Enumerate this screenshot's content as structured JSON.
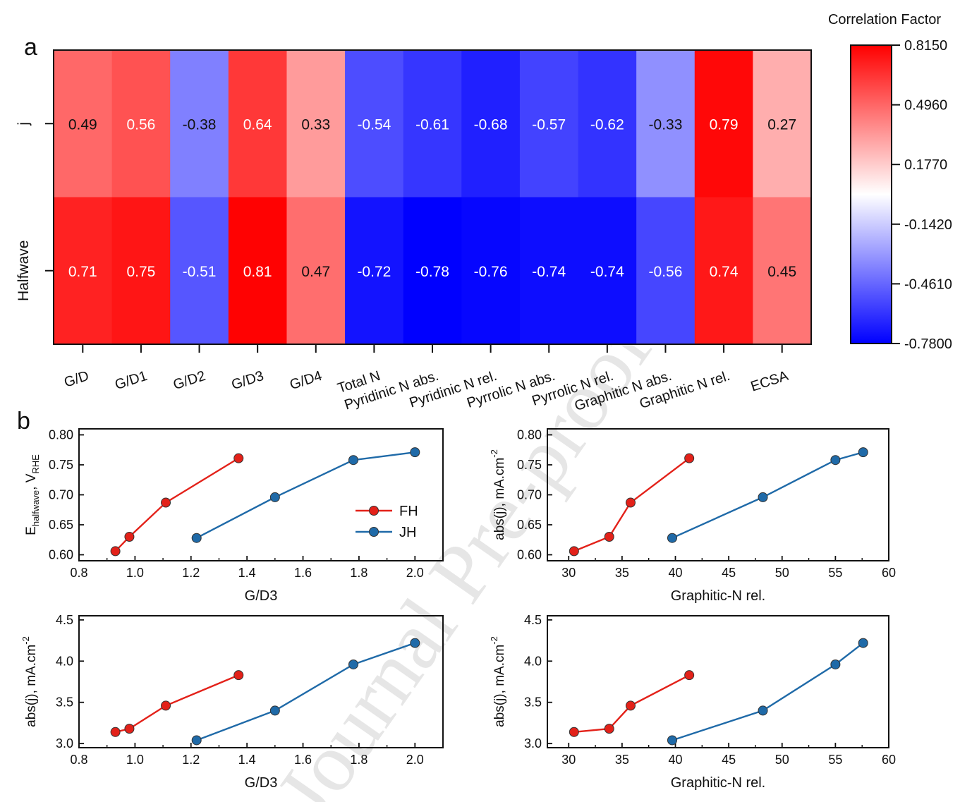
{
  "figure": {
    "panel_a_label": "a",
    "panel_b_label": "b",
    "watermark": "Journal Pre-proof"
  },
  "chart_data": [
    {
      "id": "a",
      "type": "heatmap",
      "rows": [
        "j",
        "Halfwave"
      ],
      "columns": [
        "G/D",
        "G/D1",
        "G/D2",
        "G/D3",
        "G/D4",
        "Total N",
        "Pyridinic N abs.",
        "Pyridinic N rel.",
        "Pyrrolic N abs.",
        "Pyrrolic N rel.",
        "Graphitic N abs.",
        "Graphitic N rel.",
        "ECSA"
      ],
      "values": [
        [
          "0.49",
          "0.56",
          "-0.38",
          "0.64",
          "0.33",
          "-0.54",
          "-0.61",
          "-0.68",
          "-0.57",
          "-0.62",
          "-0.33",
          "0.79",
          "0.27"
        ],
        [
          "0.71",
          "0.75",
          "-0.51",
          "0.81",
          "0.47",
          "-0.72",
          "-0.78",
          "-0.76",
          "-0.74",
          "-0.74",
          "-0.56",
          "0.74",
          "0.45"
        ]
      ],
      "colorbar": {
        "title": "Correlation Factor",
        "min": -0.78,
        "max": 0.815,
        "ticks": [
          "0.8150",
          "0.4960",
          "0.1770",
          "-0.1420",
          "-0.4610",
          "-0.7800"
        ],
        "colors": {
          "low": "#0000ff",
          "mid": "#ffffff",
          "high": "#ff0000"
        }
      }
    },
    {
      "id": "b1",
      "type": "line",
      "xlabel": "G/D3",
      "ylabel_main": "E",
      "ylabel_sub": "halfwave",
      "ylabel_mid": ", V",
      "ylabel_sub2": "RHE",
      "xlim": [
        0.8,
        2.1
      ],
      "ylim": [
        0.59,
        0.81
      ],
      "xticks": [
        "0.8",
        "1.0",
        "1.2",
        "1.4",
        "1.6",
        "1.8",
        "2.0"
      ],
      "yticks": [
        "0.60",
        "0.65",
        "0.70",
        "0.75",
        "0.80"
      ],
      "legend": {
        "position": "center-right",
        "entries": [
          "FH",
          "JH"
        ]
      },
      "series": [
        {
          "name": "FH",
          "color": "#e32119",
          "x": [
            0.93,
            0.98,
            1.11,
            1.37
          ],
          "y": [
            0.606,
            0.63,
            0.687,
            0.761
          ]
        },
        {
          "name": "JH",
          "color": "#1f6aa8",
          "x": [
            1.22,
            1.5,
            1.78,
            2.0
          ],
          "y": [
            0.628,
            0.696,
            0.758,
            0.771
          ]
        }
      ]
    },
    {
      "id": "b2",
      "type": "line",
      "xlabel": "Graphitic-N rel.",
      "ylabel_main": "abs(j), mA.cm",
      "ylabel_sup": "-2",
      "xlim": [
        28,
        60
      ],
      "ylim": [
        0.59,
        0.81
      ],
      "xticks": [
        "30",
        "35",
        "40",
        "45",
        "50",
        "55",
        "60"
      ],
      "yticks": [
        "0.60",
        "0.65",
        "0.70",
        "0.75",
        "0.80"
      ],
      "series": [
        {
          "name": "FH",
          "color": "#e32119",
          "x": [
            30.5,
            33.8,
            35.8,
            41.3
          ],
          "y": [
            0.606,
            0.63,
            0.687,
            0.761
          ]
        },
        {
          "name": "JH",
          "color": "#1f6aa8",
          "x": [
            39.7,
            48.2,
            55.0,
            57.6
          ],
          "y": [
            0.628,
            0.696,
            0.758,
            0.771
          ]
        }
      ]
    },
    {
      "id": "b3",
      "type": "line",
      "xlabel": "G/D3",
      "ylabel_main": "abs(j), mA.cm",
      "ylabel_sup": "-2",
      "xlim": [
        0.8,
        2.1
      ],
      "ylim": [
        2.95,
        4.55
      ],
      "xticks": [
        "0.8",
        "1.0",
        "1.2",
        "1.4",
        "1.6",
        "1.8",
        "2.0"
      ],
      "yticks": [
        "3.0",
        "3.5",
        "4.0",
        "4.5"
      ],
      "series": [
        {
          "name": "FH",
          "color": "#e32119",
          "x": [
            0.93,
            0.98,
            1.11,
            1.37
          ],
          "y": [
            3.14,
            3.18,
            3.46,
            3.83
          ]
        },
        {
          "name": "JH",
          "color": "#1f6aa8",
          "x": [
            1.22,
            1.5,
            1.78,
            2.0
          ],
          "y": [
            3.04,
            3.4,
            3.96,
            4.22
          ]
        }
      ]
    },
    {
      "id": "b4",
      "type": "line",
      "xlabel": "Graphitic-N rel.",
      "ylabel_main": "abs(j), mA.cm",
      "ylabel_sup": "-2",
      "xlim": [
        28,
        60
      ],
      "ylim": [
        2.95,
        4.55
      ],
      "xticks": [
        "30",
        "35",
        "40",
        "45",
        "50",
        "55",
        "60"
      ],
      "yticks": [
        "3.0",
        "3.5",
        "4.0",
        "4.5"
      ],
      "series": [
        {
          "name": "FH",
          "color": "#e32119",
          "x": [
            30.5,
            33.8,
            35.8,
            41.3
          ],
          "y": [
            3.14,
            3.18,
            3.46,
            3.83
          ]
        },
        {
          "name": "JH",
          "color": "#1f6aa8",
          "x": [
            39.7,
            48.2,
            55.0,
            57.6
          ],
          "y": [
            3.04,
            3.4,
            3.96,
            4.22
          ]
        }
      ]
    }
  ]
}
